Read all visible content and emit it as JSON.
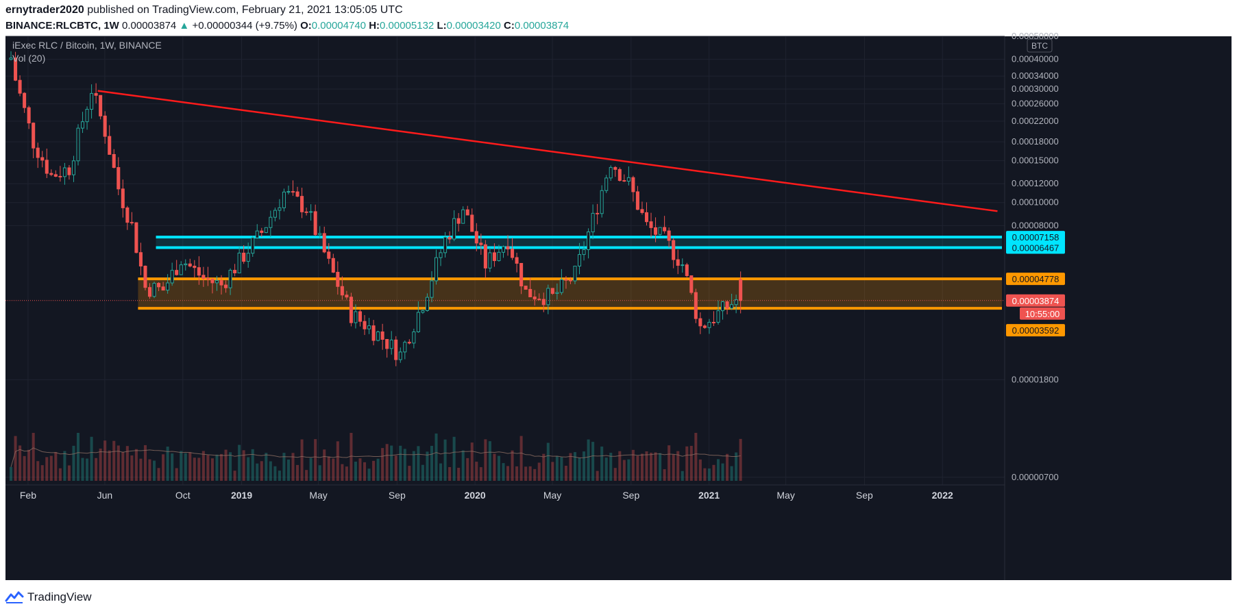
{
  "header": {
    "author": "ernytrader2020",
    "published_text": "published on TradingView.com, February 21, 2021 13:05:05 UTC",
    "symbol": "BINANCE:RLCBTC, 1W",
    "last_price": "0.00003874",
    "change_arrow": "▲",
    "change_text": "+0.00000344 (+9.75%)",
    "open_label": "O:",
    "open": "0.00004740",
    "high_label": "H:",
    "high": "0.00005132",
    "low_label": "L:",
    "low": "0.00003420",
    "close_label": "C:",
    "close": "0.00003874"
  },
  "footer": {
    "brand": "TradingView",
    "logo_icon": "tradingview-logo-icon"
  },
  "colors": {
    "background": "#131722",
    "up": "#26a69a",
    "down": "#ef5350",
    "trendline": "#ff1b1b",
    "resistance_zone": "#00e5ff",
    "support_zone": "#ff9800"
  },
  "chart_data": {
    "type": "candlestick",
    "title": "iExec RLC / Bitcoin, 1W, BINANCE",
    "indicator": "Vol (20)",
    "currency": "BTC",
    "y_scale": "log",
    "ylim": [
      2.5e-06,
      0.0005
    ],
    "y_ticks": [
      "0.00050000",
      "0.00040000",
      "0.00034000",
      "0.00030000",
      "0.00026000",
      "0.00022000",
      "0.00018000",
      "0.00015000",
      "0.00012000",
      "0.00010000",
      "0.00008000",
      "0.00001800",
      "0.00000700"
    ],
    "x_ticks": [
      {
        "label": "Feb",
        "bold": false
      },
      {
        "label": "Jun",
        "bold": false
      },
      {
        "label": "Oct",
        "bold": false
      },
      {
        "label": "2019",
        "bold": true
      },
      {
        "label": "May",
        "bold": false
      },
      {
        "label": "Sep",
        "bold": false
      },
      {
        "label": "2020",
        "bold": true
      },
      {
        "label": "May",
        "bold": false
      },
      {
        "label": "Sep",
        "bold": false
      },
      {
        "label": "2021",
        "bold": true
      },
      {
        "label": "May",
        "bold": false
      },
      {
        "label": "Sep",
        "bold": false
      },
      {
        "label": "2022",
        "bold": true
      }
    ],
    "price_labels": {
      "resistance_top": "0.00007158",
      "resistance_bottom": "0.00006467",
      "support_top": "0.00004778",
      "last": "0.00003874",
      "countdown": "10:55:00",
      "support_bottom": "0.00003592"
    },
    "zones": [
      {
        "name": "resistance",
        "top": 7.158e-05,
        "bottom": 6.467e-05,
        "start": "2018-08-20",
        "end": "2022-04-04"
      },
      {
        "name": "support",
        "top": 4.778e-05,
        "bottom": 3.592e-05,
        "start": "2018-07-23",
        "end": "2022-04-04"
      }
    ],
    "trendline": {
      "from": {
        "date": "2018-05-21",
        "price": 0.000295
      },
      "to": {
        "date": "2022-03-28",
        "price": 9.2e-05
      }
    },
    "waypoints": [
      [
        "2018-01-01",
        0.0005
      ],
      [
        "2018-01-15",
        0.00033
      ],
      [
        "2018-02-12",
        0.00018
      ],
      [
        "2018-03-12",
        0.00013
      ],
      [
        "2018-04-09",
        0.00014
      ],
      [
        "2018-05-14",
        0.0003
      ],
      [
        "2018-06-04",
        0.0002
      ],
      [
        "2018-06-25",
        0.000115
      ],
      [
        "2018-07-16",
        8e-05
      ],
      [
        "2018-08-06",
        4.4e-05
      ],
      [
        "2018-09-03",
        4.3e-05
      ],
      [
        "2018-10-01",
        5.8e-05
      ],
      [
        "2018-11-05",
        4.8e-05
      ],
      [
        "2018-12-03",
        4.5e-05
      ],
      [
        "2019-01-07",
        6e-05
      ],
      [
        "2019-02-04",
        7.5e-05
      ],
      [
        "2019-03-11",
        0.00011
      ],
      [
        "2019-04-15",
        9.5e-05
      ],
      [
        "2019-05-20",
        5.5e-05
      ],
      [
        "2019-06-24",
        3.4e-05
      ],
      [
        "2019-08-05",
        2.8e-05
      ],
      [
        "2019-09-09",
        2.3e-05
      ],
      [
        "2019-10-14",
        3.8e-05
      ],
      [
        "2019-11-18",
        7e-05
      ],
      [
        "2019-12-16",
        9.5e-05
      ],
      [
        "2020-01-20",
        5.5e-05
      ],
      [
        "2020-02-24",
        7e-05
      ],
      [
        "2020-03-23",
        4.2e-05
      ],
      [
        "2020-05-04",
        4e-05
      ],
      [
        "2020-06-08",
        5e-05
      ],
      [
        "2020-07-06",
        8.5e-05
      ],
      [
        "2020-08-03",
        0.00015
      ],
      [
        "2020-08-31",
        0.00012
      ],
      [
        "2020-09-28",
        8e-05
      ],
      [
        "2020-10-26",
        7e-05
      ],
      [
        "2020-11-23",
        5.5e-05
      ],
      [
        "2020-12-21",
        3e-05
      ],
      [
        "2021-01-11",
        3.3e-05
      ],
      [
        "2021-02-15",
        3.9e-05
      ]
    ],
    "last_candle": {
      "date": "2021-02-15",
      "open": 4.74e-05,
      "high": 5.132e-05,
      "low": 3.42e-05,
      "close": 3.874e-05
    }
  }
}
